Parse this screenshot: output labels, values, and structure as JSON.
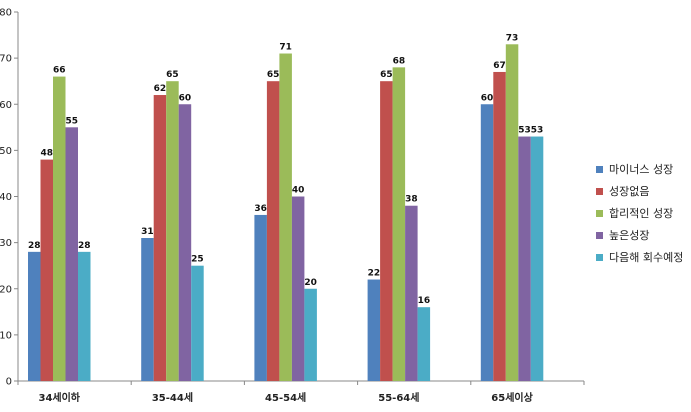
{
  "chart_data": {
    "type": "bar",
    "categories": [
      "34세이하",
      "35-44세",
      "45-54세",
      "55-64세",
      "65세이상"
    ],
    "series": [
      {
        "name": "마이너스 성장",
        "color": "#4f81bd",
        "values": [
          28,
          31,
          36,
          22,
          60
        ]
      },
      {
        "name": "성장없음",
        "color": "#c0504d",
        "values": [
          48,
          62,
          65,
          65,
          67
        ]
      },
      {
        "name": "합리적인 성장",
        "color": "#9bbb59",
        "values": [
          66,
          65,
          71,
          68,
          73
        ]
      },
      {
        "name": "높은성장",
        "color": "#8064a2",
        "values": [
          55,
          60,
          40,
          38,
          53
        ]
      },
      {
        "name": "다음해 회수예정",
        "color": "#4bacc6",
        "values": [
          28,
          25,
          20,
          16,
          53
        ]
      }
    ],
    "ylim": [
      0,
      80
    ],
    "yticks": [
      0,
      10,
      20,
      30,
      40,
      50,
      60,
      70,
      80
    ],
    "grid": false,
    "legend_position": "right"
  }
}
